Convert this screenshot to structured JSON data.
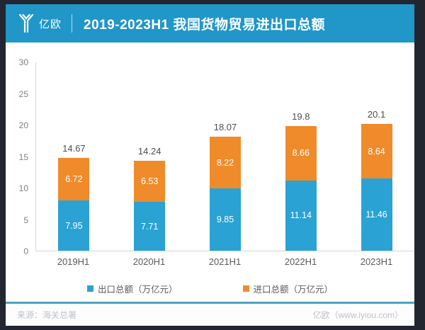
{
  "header": {
    "logo_text": "亿欧",
    "title": "2019-2023H1 我国货物贸易进出口总额"
  },
  "chart_data": {
    "type": "bar",
    "stacked": true,
    "title": "2019-2023H1 我国货物贸易进出口总额",
    "categories": [
      "2019H1",
      "2020H1",
      "2021H1",
      "2022H1",
      "2023H1"
    ],
    "series": [
      {
        "name": "出口总额（万亿元）",
        "color": "#2AA2D4",
        "values": [
          7.95,
          7.71,
          9.85,
          11.14,
          11.46
        ]
      },
      {
        "name": "进口总额（万亿元）",
        "color": "#EF8B2B",
        "values": [
          6.72,
          6.53,
          8.22,
          8.66,
          8.64
        ]
      }
    ],
    "total_labels": [
      "14.67",
      "14.24",
      "18.07",
      "19.8",
      "20.1"
    ],
    "ylim": [
      0,
      30
    ],
    "yticks": [
      0,
      5,
      10,
      15,
      20,
      25,
      30
    ],
    "grid": false,
    "legend_position": "bottom"
  },
  "footer": {
    "source": "来源：海关总署",
    "credit": "亿欧（www.iyiou.com）"
  },
  "colors": {
    "frame": "#212631",
    "header_bg": "#2196C8",
    "export_blue": "#2AA2D4",
    "import_orange": "#EF8B2B",
    "divider_teal": "#4BA6BF",
    "axis_line": "#D6D6D6",
    "tick_text": "#808080",
    "category_text": "#595959",
    "total_text": "#4D4D4D",
    "bar_label_text": "#FFFFFF",
    "footer_text": "#BDC2CA"
  }
}
